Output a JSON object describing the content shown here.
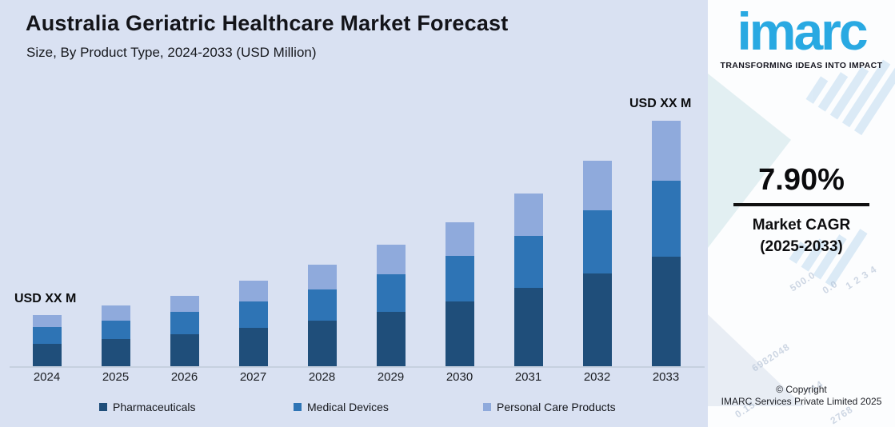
{
  "header": {
    "title": "Australia Geriatric Healthcare Market Forecast",
    "subtitle": "Size, By Product Type, 2024-2033 (USD Million)"
  },
  "chart": {
    "left_annotation": "USD XX M",
    "right_annotation": "USD XX M",
    "legend": [
      {
        "label": "Pharmaceuticals",
        "color": "#1f4e7a"
      },
      {
        "label": "Medical Devices",
        "color": "#2e74b5"
      },
      {
        "label": "Personal Care Products",
        "color": "#8faadc"
      }
    ]
  },
  "chart_data": {
    "type": "bar",
    "stacked": true,
    "title": "Australia Geriatric Healthcare Market Forecast",
    "subtitle": "Size, By Product Type, 2024-2033 (USD Million)",
    "xlabel": "",
    "ylabel": "USD Million",
    "value_labels_shown": "masked as USD XX M",
    "categories": [
      "2024",
      "2025",
      "2026",
      "2027",
      "2028",
      "2029",
      "2030",
      "2031",
      "2032",
      "2033"
    ],
    "series": [
      {
        "name": "Pharmaceuticals",
        "color": "#1f4e7a",
        "values": [
          28,
          34,
          40,
          48,
          57,
          68,
          81,
          98,
          116,
          137
        ]
      },
      {
        "name": "Medical Devices",
        "color": "#2e74b5",
        "values": [
          21,
          23,
          28,
          33,
          39,
          47,
          57,
          65,
          79,
          95
        ]
      },
      {
        "name": "Personal Care Products",
        "color": "#8faadc",
        "values": [
          15,
          19,
          20,
          26,
          31,
          37,
          42,
          53,
          62,
          75
        ]
      }
    ],
    "totals_relative": [
      64,
      76,
      88,
      107,
      127,
      152,
      180,
      216,
      257,
      307
    ],
    "ylim": [
      0,
      330
    ],
    "grid": false,
    "legend_position": "bottom",
    "note": "Absolute values are masked in the source image (USD XX M); series values are relative heights."
  },
  "sidebar": {
    "logo_text": "imarc",
    "logo_tagline": "TRANSFORMING IDEAS INTO IMPACT",
    "cagr_value": "7.90%",
    "cagr_label_line1": "Market CAGR",
    "cagr_label_line2": "(2025-2033)",
    "copyright_line1": "© Copyright",
    "copyright_line2": "IMARC Services Private Limited 2025",
    "watermarks": [
      "500.0",
      "0.0",
      "1 2 3 4",
      "6982048",
      "714",
      "0.15",
      "2768"
    ]
  },
  "colors": {
    "chart_background": "#d9e1f2",
    "panel_background": "#fcfdfe",
    "logo_blue": "#29a9e2",
    "axis_line": "#c6d0df",
    "text_dark": "#131419"
  }
}
